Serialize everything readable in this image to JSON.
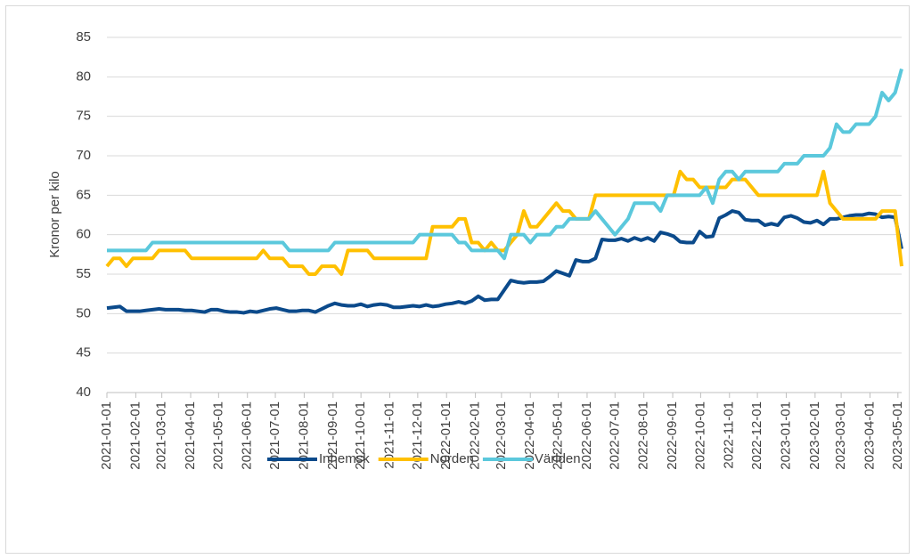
{
  "chart_data": {
    "type": "line",
    "y_label": "Kronor per kilo",
    "x": [
      "2021-01-01",
      "2021-01-08",
      "2021-01-15",
      "2021-01-22",
      "2021-01-29",
      "2021-02-05",
      "2021-02-12",
      "2021-02-19",
      "2021-02-26",
      "2021-03-05",
      "2021-03-12",
      "2021-03-19",
      "2021-03-26",
      "2021-04-02",
      "2021-04-09",
      "2021-04-16",
      "2021-04-23",
      "2021-04-30",
      "2021-05-07",
      "2021-05-14",
      "2021-05-21",
      "2021-05-28",
      "2021-06-04",
      "2021-06-11",
      "2021-06-18",
      "2021-06-25",
      "2021-07-02",
      "2021-07-09",
      "2021-07-16",
      "2021-07-23",
      "2021-07-30",
      "2021-08-06",
      "2021-08-13",
      "2021-08-20",
      "2021-08-27",
      "2021-09-03",
      "2021-09-10",
      "2021-09-17",
      "2021-09-24",
      "2021-10-01",
      "2021-10-08",
      "2021-10-15",
      "2021-10-22",
      "2021-10-29",
      "2021-11-05",
      "2021-11-12",
      "2021-11-19",
      "2021-11-26",
      "2021-12-03",
      "2021-12-10",
      "2021-12-17",
      "2021-12-24",
      "2021-12-31",
      "2022-01-07",
      "2022-01-14",
      "2022-01-21",
      "2022-01-28",
      "2022-02-04",
      "2022-02-11",
      "2022-02-18",
      "2022-02-25",
      "2022-03-04",
      "2022-03-11",
      "2022-03-18",
      "2022-03-25",
      "2022-04-01",
      "2022-04-08",
      "2022-04-15",
      "2022-04-22",
      "2022-04-29",
      "2022-05-06",
      "2022-05-13",
      "2022-05-20",
      "2022-05-27",
      "2022-06-03",
      "2022-06-10",
      "2022-06-17",
      "2022-06-24",
      "2022-07-01",
      "2022-07-08",
      "2022-07-15",
      "2022-07-22",
      "2022-07-29",
      "2022-08-05",
      "2022-08-12",
      "2022-08-19",
      "2022-08-26",
      "2022-09-02",
      "2022-09-09",
      "2022-09-16",
      "2022-09-23",
      "2022-09-30",
      "2022-10-07",
      "2022-10-14",
      "2022-10-21",
      "2022-10-28",
      "2022-11-04",
      "2022-11-11",
      "2022-11-18",
      "2022-11-25",
      "2022-12-02",
      "2022-12-09",
      "2022-12-16",
      "2022-12-23",
      "2022-12-30",
      "2023-01-06",
      "2023-01-13",
      "2023-01-20",
      "2023-01-27",
      "2023-02-03",
      "2023-02-10",
      "2023-02-17",
      "2023-02-24",
      "2023-03-03",
      "2023-03-10",
      "2023-03-17",
      "2023-03-24",
      "2023-03-31",
      "2023-04-07",
      "2023-04-14",
      "2023-04-21",
      "2023-04-28",
      "2023-05-05"
    ],
    "series": [
      {
        "name": "Inhemsk",
        "color": "#0b4a8b",
        "values": [
          50.7,
          50.8,
          50.9,
          50.3,
          50.3,
          50.3,
          50.4,
          50.5,
          50.6,
          50.5,
          50.5,
          50.5,
          50.4,
          50.4,
          50.3,
          50.2,
          50.5,
          50.5,
          50.3,
          50.2,
          50.2,
          50.1,
          50.3,
          50.2,
          50.4,
          50.6,
          50.7,
          50.5,
          50.3,
          50.3,
          50.4,
          50.4,
          50.2,
          50.6,
          51.0,
          51.3,
          51.1,
          51.0,
          51.0,
          51.2,
          50.9,
          51.1,
          51.2,
          51.1,
          50.8,
          50.8,
          50.9,
          51.0,
          50.9,
          51.1,
          50.9,
          51.0,
          51.2,
          51.3,
          51.5,
          51.3,
          51.6,
          52.2,
          51.7,
          51.8,
          51.8,
          53.0,
          54.2,
          54.0,
          53.9,
          54.0,
          54.0,
          54.1,
          54.7,
          55.4,
          55.1,
          54.8,
          56.8,
          56.6,
          56.6,
          57.0,
          59.4,
          59.3,
          59.3,
          59.5,
          59.2,
          59.6,
          59.3,
          59.6,
          59.2,
          60.3,
          60.1,
          59.8,
          59.1,
          59.0,
          59.0,
          60.4,
          59.7,
          59.8,
          62.1,
          62.5,
          63.0,
          62.8,
          61.9,
          61.8,
          61.8,
          61.2,
          61.4,
          61.2,
          62.2,
          62.4,
          62.1,
          61.6,
          61.5,
          61.8,
          61.3,
          62.0,
          62.0,
          62.2,
          62.4,
          62.5,
          62.5,
          62.7,
          62.6,
          62.2,
          62.3,
          62.2,
          58.2
        ]
      },
      {
        "name": "Norden",
        "color": "#ffc000",
        "values": [
          56,
          57,
          57,
          56,
          57,
          57,
          57,
          57,
          58,
          58,
          58,
          58,
          58,
          57,
          57,
          57,
          57,
          57,
          57,
          57,
          57,
          57,
          57,
          57,
          58,
          57,
          57,
          57,
          56,
          56,
          56,
          55,
          55,
          56,
          56,
          56,
          55,
          58,
          58,
          58,
          58,
          57,
          57,
          57,
          57,
          57,
          57,
          57,
          57,
          57,
          61,
          61,
          61,
          61,
          62,
          62,
          59,
          59,
          58,
          59,
          58,
          58,
          59,
          60,
          63,
          61,
          61,
          62,
          63,
          64,
          63,
          63,
          62,
          62,
          62,
          65,
          65,
          65,
          65,
          65,
          65,
          65,
          65,
          65,
          65,
          65,
          65,
          65,
          68,
          67,
          67,
          66,
          66,
          66,
          66,
          66,
          67,
          67,
          67,
          66,
          65,
          65,
          65,
          65,
          65,
          65,
          65,
          65,
          65,
          65,
          68,
          64,
          63,
          62,
          62,
          62,
          62,
          62,
          62,
          63,
          63,
          63,
          56
        ]
      },
      {
        "name": "Världen",
        "color": "#5bc8dc",
        "values": [
          58,
          58,
          58,
          58,
          58,
          58,
          58,
          59,
          59,
          59,
          59,
          59,
          59,
          59,
          59,
          59,
          59,
          59,
          59,
          59,
          59,
          59,
          59,
          59,
          59,
          59,
          59,
          59,
          58,
          58,
          58,
          58,
          58,
          58,
          58,
          59,
          59,
          59,
          59,
          59,
          59,
          59,
          59,
          59,
          59,
          59,
          59,
          59,
          60,
          60,
          60,
          60,
          60,
          60,
          59,
          59,
          58,
          58,
          58,
          58,
          58,
          57,
          60,
          60,
          60,
          59,
          60,
          60,
          60,
          61,
          61,
          62,
          62,
          62,
          62,
          63,
          62,
          61,
          60,
          61,
          62,
          64,
          64,
          64,
          64,
          63,
          65,
          65,
          65,
          65,
          65,
          65,
          66,
          64,
          67,
          68,
          68,
          67,
          68,
          68,
          68,
          68,
          68,
          68,
          69,
          69,
          69,
          70,
          70,
          70,
          70,
          71,
          74,
          73,
          73,
          74,
          74,
          74,
          75,
          78,
          77,
          78,
          81
        ]
      }
    ],
    "xlim": [
      "2021-01-01",
      "2023-05-05"
    ],
    "xticks": [
      "2021-01-01",
      "2021-02-01",
      "2021-03-01",
      "2021-04-01",
      "2021-05-01",
      "2021-06-01",
      "2021-07-01",
      "2021-08-01",
      "2021-09-01",
      "2021-10-01",
      "2021-11-01",
      "2021-12-01",
      "2022-01-01",
      "2022-02-01",
      "2022-03-01",
      "2022-04-01",
      "2022-05-01",
      "2022-06-01",
      "2022-07-01",
      "2022-08-01",
      "2022-09-01",
      "2022-10-01",
      "2022-11-01",
      "2022-12-01",
      "2023-01-01",
      "2023-02-01",
      "2023-03-01",
      "2023-04-01",
      "2023-05-01"
    ],
    "ylim": [
      40,
      85
    ],
    "yticks": [
      40,
      45,
      50,
      55,
      60,
      65,
      70,
      75,
      80,
      85
    ],
    "grid": true,
    "legend": "bottom"
  }
}
